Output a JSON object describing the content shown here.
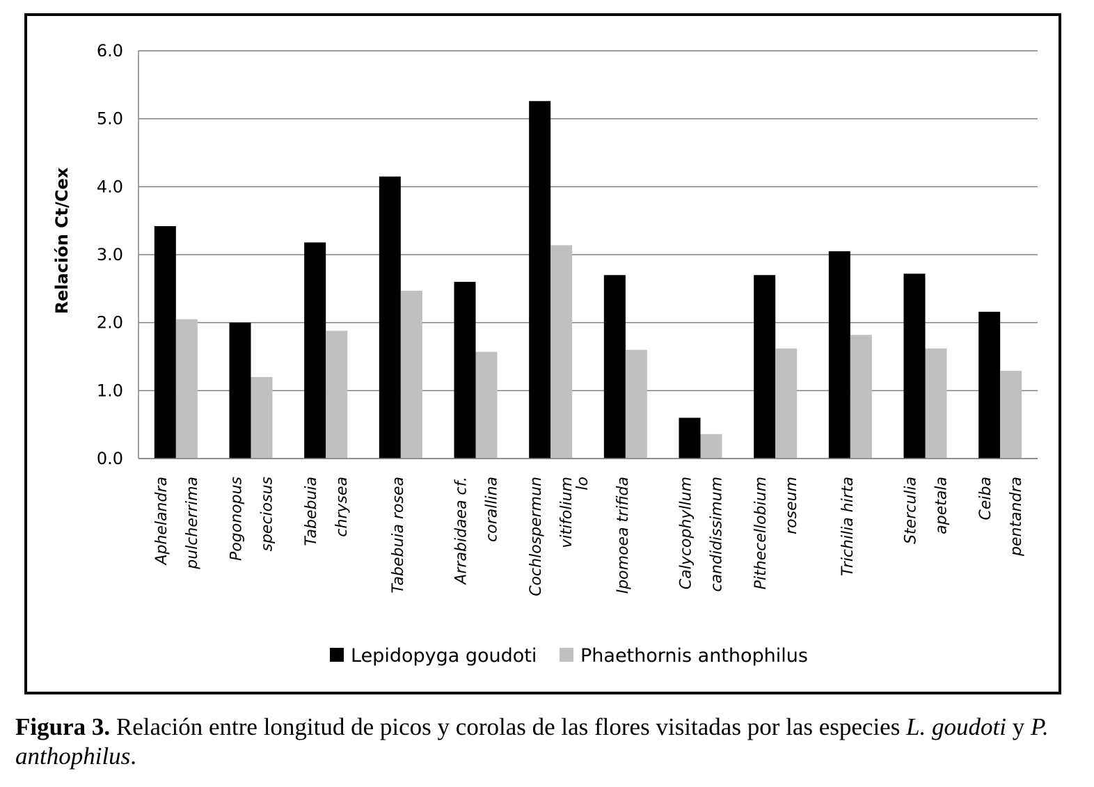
{
  "chart_data": {
    "type": "bar",
    "ylabel": "Relación Ct/Cex",
    "ylim": [
      0,
      6
    ],
    "yticks": [
      "0.0",
      "1.0",
      "2.0",
      "3.0",
      "4.0",
      "5.0",
      "6.0"
    ],
    "grid": true,
    "legend_position": "bottom",
    "categories": [
      [
        "Aphelandra",
        "pulcherrima"
      ],
      [
        "Pogonopus",
        "speciosus"
      ],
      [
        "Tabebuia",
        "chrysea"
      ],
      [
        "Tabebuia rosea"
      ],
      [
        "Arrabidaea cf.",
        "corallina"
      ],
      [
        "Cochlospermun",
        "vitifolium"
      ],
      [
        "Ipomoea trifida"
      ],
      [
        "Calycophyllum",
        "candidissimum"
      ],
      [
        "Pithecellobium",
        "roseum"
      ],
      [
        "Trichilia hirta"
      ],
      [
        "Sterculia",
        "apetala"
      ],
      [
        "Ceiba",
        "pentandra"
      ]
    ],
    "stray_label": "lo",
    "series": [
      {
        "name": "Lepidopyga goudoti",
        "color": "#000000",
        "values": [
          3.42,
          2.0,
          3.18,
          4.15,
          2.6,
          5.26,
          2.7,
          0.6,
          2.7,
          3.05,
          2.72,
          2.16
        ]
      },
      {
        "name": "Phaethornis anthophilus",
        "color": "#c0c0c0",
        "values": [
          2.05,
          1.2,
          1.88,
          2.47,
          1.57,
          3.14,
          1.6,
          0.36,
          1.62,
          1.82,
          1.62,
          1.29
        ]
      }
    ]
  },
  "caption": {
    "label": "Figura 3.",
    "text_1": " Relación entre longitud de picos y corolas de las flores visitadas por las especies ",
    "species_1": "L. goudoti",
    "text_2": " y ",
    "species_2": "P. anthophilus",
    "text_3": "."
  }
}
